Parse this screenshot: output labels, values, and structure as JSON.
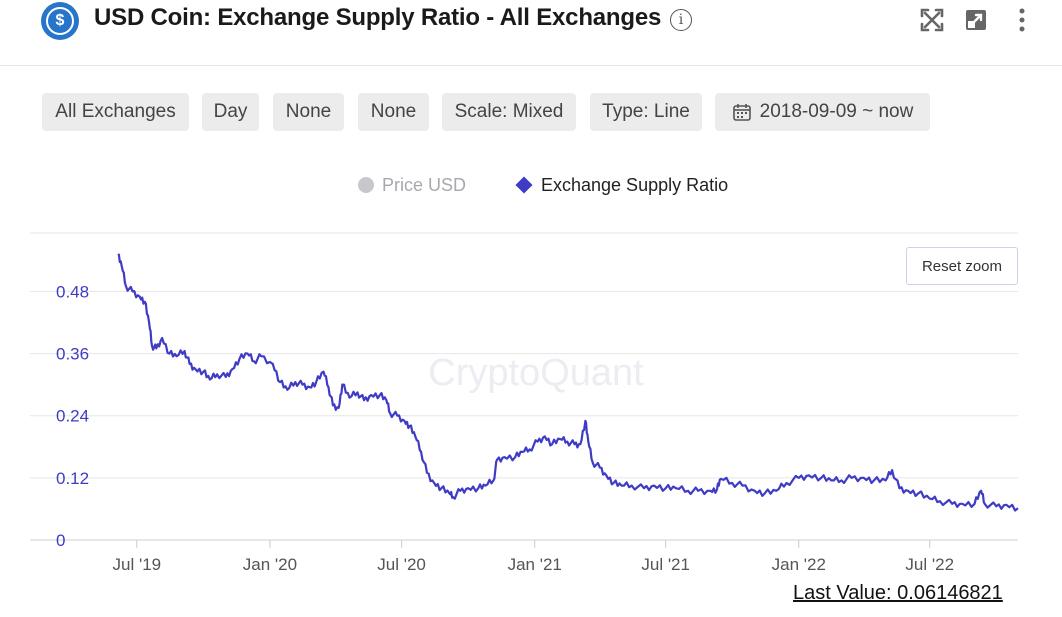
{
  "header": {
    "title": "USD Coin: Exchange Supply Ratio - All Exchanges",
    "coin_symbol": "$",
    "info_glyph": "i",
    "icons": [
      "usdc-coin-icon",
      "info-icon",
      "fullscreen-icon",
      "popout-icon",
      "more-options-icon"
    ]
  },
  "toolbar": {
    "exchange": "All Exchanges",
    "window": "Day",
    "filter1": "None",
    "filter2": "None",
    "scale": "Scale: Mixed",
    "type": "Type: Line",
    "date_range": "2018-09-09 ~ now"
  },
  "legend": {
    "price_label": "Price USD",
    "ratio_label": "Exchange Supply Ratio"
  },
  "reset_zoom_label": "Reset zoom",
  "watermark": "CryptoQuant",
  "last_value_label": "Last Value: 0.06146821",
  "colors": {
    "series": "#3f3bc5",
    "legend_inactive": "#c8c8cc",
    "grid": "#e6e6e6"
  },
  "chart_data": {
    "type": "line",
    "title": "USD Coin: Exchange Supply Ratio - All Exchanges",
    "ylim": [
      0,
      0.56
    ],
    "yticks": [
      0,
      0.12,
      0.24,
      0.36,
      0.48
    ],
    "ytick_labels": [
      "0",
      "0.12",
      "0.24",
      "0.36",
      "0.48"
    ],
    "xticks": [
      "2019-07-01",
      "2020-01-01",
      "2020-07-01",
      "2021-01-01",
      "2021-07-01",
      "2022-01-01",
      "2022-07-01"
    ],
    "xtick_labels": [
      "Jul '19",
      "Jan '20",
      "Jul '20",
      "Jan '21",
      "Jul '21",
      "Jan '22",
      "Jul '22"
    ],
    "xlim": [
      "2019-06-05",
      "2022-10-31"
    ],
    "grid": true,
    "legend_position": "top-center",
    "series": [
      {
        "name": "Exchange Supply Ratio",
        "points": [
          [
            "2019-06-05",
            0.55
          ],
          [
            "2019-06-10",
            0.53
          ],
          [
            "2019-06-16",
            0.49
          ],
          [
            "2019-06-25",
            0.48
          ],
          [
            "2019-07-05",
            0.47
          ],
          [
            "2019-07-12",
            0.46
          ],
          [
            "2019-07-18",
            0.42
          ],
          [
            "2019-07-22",
            0.375
          ],
          [
            "2019-07-28",
            0.37
          ],
          [
            "2019-08-05",
            0.39
          ],
          [
            "2019-08-15",
            0.36
          ],
          [
            "2019-08-25",
            0.355
          ],
          [
            "2019-09-05",
            0.365
          ],
          [
            "2019-09-12",
            0.34
          ],
          [
            "2019-09-20",
            0.33
          ],
          [
            "2019-10-01",
            0.325
          ],
          [
            "2019-10-10",
            0.31
          ],
          [
            "2019-10-20",
            0.32
          ],
          [
            "2019-11-01",
            0.315
          ],
          [
            "2019-11-10",
            0.33
          ],
          [
            "2019-11-20",
            0.35
          ],
          [
            "2019-12-01",
            0.36
          ],
          [
            "2019-12-10",
            0.345
          ],
          [
            "2019-12-20",
            0.355
          ],
          [
            "2020-01-05",
            0.34
          ],
          [
            "2020-01-15",
            0.305
          ],
          [
            "2020-01-25",
            0.29
          ],
          [
            "2020-02-05",
            0.305
          ],
          [
            "2020-02-15",
            0.3
          ],
          [
            "2020-02-25",
            0.295
          ],
          [
            "2020-03-05",
            0.305
          ],
          [
            "2020-03-15",
            0.325
          ],
          [
            "2020-03-22",
            0.295
          ],
          [
            "2020-03-28",
            0.26
          ],
          [
            "2020-04-05",
            0.255
          ],
          [
            "2020-04-10",
            0.3
          ],
          [
            "2020-04-20",
            0.275
          ],
          [
            "2020-05-01",
            0.285
          ],
          [
            "2020-05-10",
            0.27
          ],
          [
            "2020-05-20",
            0.28
          ],
          [
            "2020-06-01",
            0.28
          ],
          [
            "2020-06-10",
            0.27
          ],
          [
            "2020-06-15",
            0.245
          ],
          [
            "2020-06-25",
            0.24
          ],
          [
            "2020-07-05",
            0.23
          ],
          [
            "2020-07-12",
            0.22
          ],
          [
            "2020-07-20",
            0.2
          ],
          [
            "2020-07-28",
            0.17
          ],
          [
            "2020-08-05",
            0.13
          ],
          [
            "2020-08-15",
            0.11
          ],
          [
            "2020-08-25",
            0.1
          ],
          [
            "2020-09-05",
            0.09
          ],
          [
            "2020-09-10",
            0.083
          ],
          [
            "2020-09-20",
            0.095
          ],
          [
            "2020-10-01",
            0.1
          ],
          [
            "2020-10-15",
            0.1
          ],
          [
            "2020-10-25",
            0.105
          ],
          [
            "2020-11-05",
            0.115
          ],
          [
            "2020-11-10",
            0.155
          ],
          [
            "2020-11-20",
            0.16
          ],
          [
            "2020-12-05",
            0.16
          ],
          [
            "2020-12-15",
            0.17
          ],
          [
            "2020-12-25",
            0.175
          ],
          [
            "2021-01-05",
            0.19
          ],
          [
            "2021-01-15",
            0.2
          ],
          [
            "2021-01-25",
            0.185
          ],
          [
            "2021-02-05",
            0.195
          ],
          [
            "2021-02-15",
            0.19
          ],
          [
            "2021-02-25",
            0.185
          ],
          [
            "2021-03-05",
            0.185
          ],
          [
            "2021-03-12",
            0.23
          ],
          [
            "2021-03-16",
            0.19
          ],
          [
            "2021-03-22",
            0.15
          ],
          [
            "2021-04-01",
            0.14
          ],
          [
            "2021-04-10",
            0.125
          ],
          [
            "2021-04-20",
            0.11
          ],
          [
            "2021-05-01",
            0.105
          ],
          [
            "2021-05-15",
            0.105
          ],
          [
            "2021-06-01",
            0.1
          ],
          [
            "2021-06-15",
            0.105
          ],
          [
            "2021-07-01",
            0.1
          ],
          [
            "2021-07-15",
            0.1
          ],
          [
            "2021-08-01",
            0.095
          ],
          [
            "2021-08-15",
            0.095
          ],
          [
            "2021-09-01",
            0.095
          ],
          [
            "2021-09-10",
            0.098
          ],
          [
            "2021-09-15",
            0.118
          ],
          [
            "2021-10-01",
            0.11
          ],
          [
            "2021-10-15",
            0.105
          ],
          [
            "2021-11-01",
            0.095
          ],
          [
            "2021-11-15",
            0.09
          ],
          [
            "2021-12-01",
            0.095
          ],
          [
            "2021-12-15",
            0.11
          ],
          [
            "2022-01-01",
            0.12
          ],
          [
            "2022-01-15",
            0.125
          ],
          [
            "2022-02-01",
            0.12
          ],
          [
            "2022-02-15",
            0.115
          ],
          [
            "2022-03-01",
            0.115
          ],
          [
            "2022-03-15",
            0.12
          ],
          [
            "2022-04-01",
            0.12
          ],
          [
            "2022-04-15",
            0.115
          ],
          [
            "2022-05-01",
            0.115
          ],
          [
            "2022-05-10",
            0.135
          ],
          [
            "2022-05-20",
            0.1
          ],
          [
            "2022-06-01",
            0.095
          ],
          [
            "2022-06-15",
            0.09
          ],
          [
            "2022-07-01",
            0.08
          ],
          [
            "2022-07-15",
            0.075
          ],
          [
            "2022-08-01",
            0.07
          ],
          [
            "2022-08-15",
            0.07
          ],
          [
            "2022-09-01",
            0.07
          ],
          [
            "2022-09-10",
            0.095
          ],
          [
            "2022-09-15",
            0.07
          ],
          [
            "2022-10-01",
            0.065
          ],
          [
            "2022-10-15",
            0.068
          ],
          [
            "2022-10-31",
            0.0615
          ]
        ]
      }
    ]
  }
}
